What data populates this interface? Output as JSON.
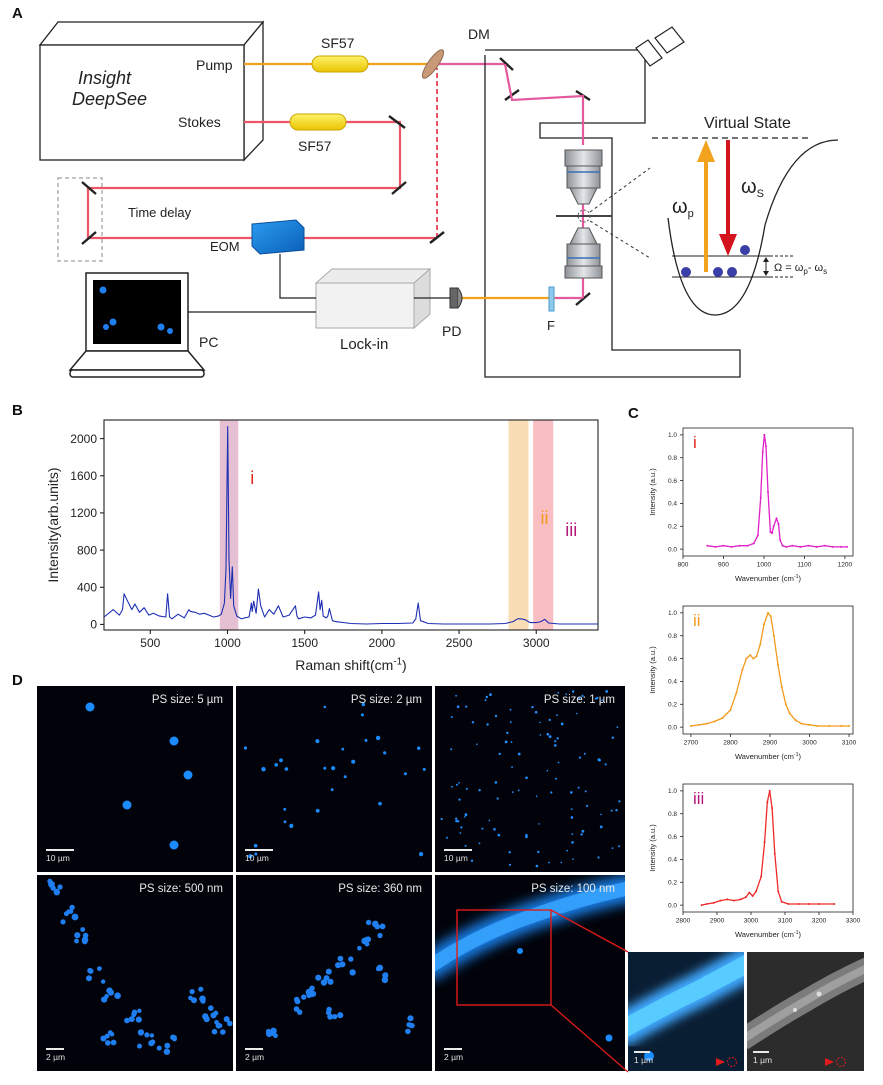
{
  "panel_letters": {
    "a": "A",
    "b": "B",
    "c": "C",
    "d": "D"
  },
  "panel_a": {
    "laser_line1": "Insight",
    "laser_line2": "DeepSee",
    "pump": "Pump",
    "stokes": "Stokes",
    "sf57_top": "SF57",
    "sf57_bottom": "SF57",
    "dm": "DM",
    "time_delay": "Time delay",
    "eom": "EOM",
    "lockin": "Lock-in",
    "pd": "PD",
    "pc": "PC",
    "filter": "F",
    "virtual_state": "Virtual State",
    "omega_p": "ω",
    "omega_p_sub": "p",
    "omega_s": "ω",
    "omega_s_sub": "S",
    "omega_eq": "Ω = ω",
    "omega_eq_p": "p",
    "omega_eq_mid": "- ω",
    "omega_eq_s": "s"
  },
  "chart_data": [
    {
      "type": "line",
      "panel": "B",
      "xlabel": "Raman shift(cm",
      "xlabel_sup": "-1",
      "xlabel_close": ")",
      "ylabel": "Intensity(arb.units)",
      "xlim": [
        200,
        3400
      ],
      "ylim": [
        -60,
        2200
      ],
      "xticks": [
        500,
        1000,
        1500,
        2000,
        2500,
        3000
      ],
      "yticks": [
        0,
        400,
        800,
        1200,
        1600,
        2000
      ],
      "line_color": "#1f2fb3",
      "regions": [
        {
          "label": "i",
          "from": 950,
          "to": 1070,
          "color": "#d9a5bf",
          "label_color": "#e0281c"
        },
        {
          "label": "ii",
          "from": 2820,
          "to": 2950,
          "color": "#f7cf95",
          "label_color": "#f29a1d"
        },
        {
          "label": "iii",
          "from": 2980,
          "to": 3110,
          "color": "#f5a3a8",
          "label_color": "#b5177a"
        }
      ],
      "x": [
        200,
        260,
        300,
        320,
        330,
        350,
        380,
        400,
        430,
        460,
        490,
        520,
        560,
        600,
        612,
        625,
        640,
        680,
        720,
        750,
        760,
        790,
        820,
        850,
        880,
        910,
        940,
        960,
        980,
        990,
        1001,
        1010,
        1020,
        1031,
        1040,
        1060,
        1090,
        1110,
        1140,
        1155,
        1160,
        1170,
        1185,
        1200,
        1215,
        1240,
        1270,
        1300,
        1330,
        1360,
        1400,
        1440,
        1450,
        1460,
        1500,
        1540,
        1570,
        1583,
        1590,
        1600,
        1610,
        1620,
        1640,
        1650,
        1660,
        1680,
        1700,
        1800,
        1900,
        2000,
        2100,
        2200,
        2220,
        2235,
        2250,
        2300,
        2400,
        2500,
        2600,
        2700,
        2800,
        2850,
        2880,
        2900,
        2930,
        2960,
        3000,
        3030,
        3055,
        3080,
        3150,
        3250,
        3400
      ],
      "y": [
        80,
        160,
        100,
        160,
        330,
        260,
        160,
        220,
        130,
        180,
        100,
        120,
        90,
        80,
        330,
        80,
        60,
        110,
        70,
        160,
        140,
        130,
        110,
        120,
        100,
        80,
        90,
        110,
        230,
        600,
        2130,
        700,
        280,
        620,
        200,
        90,
        60,
        70,
        80,
        230,
        140,
        250,
        120,
        380,
        200,
        80,
        160,
        110,
        200,
        80,
        100,
        200,
        90,
        60,
        80,
        70,
        100,
        260,
        350,
        160,
        260,
        90,
        70,
        90,
        170,
        40,
        30,
        10,
        5,
        10,
        10,
        15,
        60,
        230,
        40,
        10,
        5,
        5,
        5,
        5,
        10,
        30,
        60,
        60,
        50,
        20,
        20,
        30,
        55,
        15,
        5,
        5,
        5
      ]
    },
    {
      "type": "line",
      "panel": "C-i",
      "roman": "i",
      "roman_color": "#e0281c",
      "line_color": "#e020c8",
      "xlabel": "Wavenumber (cm",
      "xlabel_sup": "-1",
      "xlabel_close": ")",
      "ylabel": "Intensity (a.u.)",
      "xlim": [
        800,
        1220
      ],
      "ylim": [
        -0.06,
        1.06
      ],
      "xticks": [
        800,
        900,
        1000,
        1100,
        1200
      ],
      "yticks": [
        0.0,
        0.2,
        0.4,
        0.6,
        0.8,
        1.0
      ],
      "ytick_labels": [
        "0.0",
        "0.2",
        "0.4",
        "0.6",
        "0.8",
        "1.0"
      ],
      "x": [
        860,
        880,
        900,
        920,
        940,
        960,
        975,
        985,
        992,
        997,
        1001,
        1005,
        1010,
        1016,
        1020,
        1024,
        1031,
        1036,
        1040,
        1046,
        1055,
        1070,
        1090,
        1110,
        1130,
        1150,
        1170,
        1190,
        1205
      ],
      "y": [
        0.03,
        0.02,
        0.03,
        0.02,
        0.03,
        0.03,
        0.05,
        0.12,
        0.45,
        0.85,
        1.0,
        0.9,
        0.5,
        0.15,
        0.14,
        0.2,
        0.27,
        0.22,
        0.08,
        0.03,
        0.02,
        0.03,
        0.02,
        0.03,
        0.02,
        0.03,
        0.02,
        0.02,
        0.02
      ]
    },
    {
      "type": "line",
      "panel": "C-ii",
      "roman": "ii",
      "roman_color": "#f29a1d",
      "line_color": "#f29a1d",
      "xlabel": "Wavenumber (cm",
      "xlabel_sup": "-1",
      "xlabel_close": ")",
      "ylabel": "Intensity (a.u.)",
      "xlim": [
        2680,
        3110
      ],
      "ylim": [
        -0.06,
        1.06
      ],
      "xticks": [
        2700,
        2800,
        2900,
        3000,
        3100
      ],
      "yticks": [
        0.0,
        0.2,
        0.4,
        0.6,
        0.8,
        1.0
      ],
      "ytick_labels": [
        "0.0",
        "0.2",
        "0.4",
        "0.6",
        "0.8",
        "1.0"
      ],
      "x": [
        2700,
        2720,
        2740,
        2760,
        2780,
        2800,
        2815,
        2830,
        2840,
        2850,
        2858,
        2866,
        2875,
        2885,
        2895,
        2902,
        2910,
        2920,
        2930,
        2940,
        2950,
        2965,
        2980,
        3000,
        3020,
        3050,
        3080,
        3100
      ],
      "y": [
        0.01,
        0.02,
        0.03,
        0.05,
        0.08,
        0.15,
        0.3,
        0.5,
        0.6,
        0.63,
        0.6,
        0.62,
        0.72,
        0.9,
        1.0,
        0.97,
        0.8,
        0.55,
        0.35,
        0.2,
        0.12,
        0.06,
        0.03,
        0.02,
        0.01,
        0.01,
        0.01,
        0.01
      ]
    },
    {
      "type": "line",
      "panel": "C-iii",
      "roman": "iii",
      "roman_color": "#b5177a",
      "line_color": "#ee2a2a",
      "xlabel": "Wavenumber (cm",
      "xlabel_sup": "-1",
      "xlabel_close": ")",
      "ylabel": "Intensity (a.u.)",
      "xlim": [
        2800,
        3300
      ],
      "ylim": [
        -0.06,
        1.06
      ],
      "xticks": [
        2800,
        2900,
        3000,
        3100,
        3200,
        3300
      ],
      "yticks": [
        0.0,
        0.2,
        0.4,
        0.6,
        0.8,
        1.0
      ],
      "ytick_labels": [
        "0.0",
        "0.2",
        "0.4",
        "0.6",
        "0.8",
        "1.0"
      ],
      "x": [
        2855,
        2870,
        2890,
        2910,
        2930,
        2950,
        2970,
        2985,
        2995,
        3005,
        3015,
        3030,
        3040,
        3048,
        3055,
        3062,
        3070,
        3080,
        3090,
        3110,
        3140,
        3170,
        3200,
        3245
      ],
      "y": [
        0.0,
        0.01,
        0.02,
        0.04,
        0.05,
        0.04,
        0.05,
        0.07,
        0.11,
        0.08,
        0.12,
        0.25,
        0.55,
        0.9,
        1.0,
        0.85,
        0.45,
        0.12,
        0.03,
        0.01,
        0.01,
        0.01,
        0.01,
        0.01
      ]
    }
  ],
  "panel_d": {
    "tiles": [
      {
        "label": "PS size: 5 µm",
        "scale": "10 µm"
      },
      {
        "label": "PS size: 2 µm",
        "scale": "10 µm"
      },
      {
        "label": "PS size: 1 µm",
        "scale": "10 µm"
      },
      {
        "label": "PS size: 500 nm",
        "scale": "2 µm"
      },
      {
        "label": "PS size: 360 nm",
        "scale": "2 µm"
      },
      {
        "label": "PS size: 100 nm",
        "scale": "2 µm"
      }
    ],
    "zoom_scale": "1 µm",
    "sem_scale": "1 µm"
  }
}
